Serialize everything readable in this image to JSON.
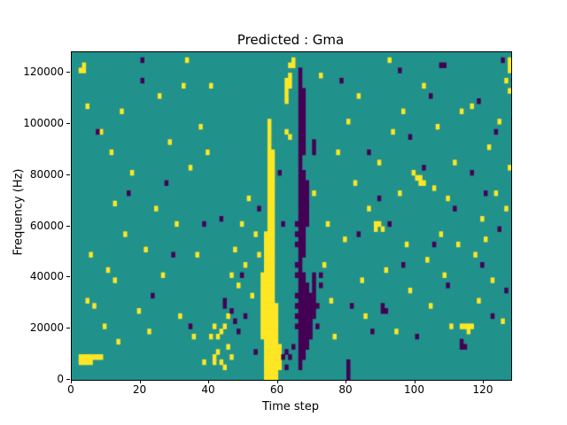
{
  "chart_data": {
    "type": "heatmap",
    "title": "Predicted : Gma",
    "xlabel": "Time step",
    "ylabel": "Frequency (Hz)",
    "x_range": [
      0,
      128
    ],
    "y_range": [
      0,
      128000
    ],
    "x_ticks": [
      0,
      20,
      40,
      60,
      80,
      100,
      120
    ],
    "y_ticks": [
      0,
      20000,
      40000,
      60000,
      80000,
      100000,
      120000
    ],
    "grid": {
      "cols": 128,
      "rows": 64,
      "cell_hz": 2000
    },
    "colors": {
      "background": "#21918c",
      "yellow": "#fde725",
      "purple": "#440154"
    },
    "legend": "none",
    "yellow_cells": [
      [
        2,
        3,
        4
      ],
      [
        3,
        3,
        4
      ],
      [
        4,
        3,
        4
      ],
      [
        5,
        3,
        4
      ],
      [
        6,
        4
      ],
      [
        7,
        4
      ],
      [
        8,
        4
      ],
      [
        2,
        60
      ],
      [
        3,
        60,
        61
      ],
      [
        4,
        53
      ],
      [
        8,
        48
      ],
      [
        5,
        24
      ],
      [
        4,
        15
      ],
      [
        6,
        14
      ],
      [
        10,
        21
      ],
      [
        12,
        19
      ],
      [
        9,
        10
      ],
      [
        13,
        7
      ],
      [
        12,
        34
      ],
      [
        15,
        28
      ],
      [
        11,
        44
      ],
      [
        17,
        40
      ],
      [
        14,
        52
      ],
      [
        19,
        13
      ],
      [
        22,
        9
      ],
      [
        21,
        25
      ],
      [
        24,
        33
      ],
      [
        26,
        20
      ],
      [
        28,
        46
      ],
      [
        25,
        55
      ],
      [
        30,
        30
      ],
      [
        31,
        12
      ],
      [
        33,
        62
      ],
      [
        32,
        57
      ],
      [
        34,
        41
      ],
      [
        36,
        24
      ],
      [
        35,
        8
      ],
      [
        37,
        49
      ],
      [
        38,
        3
      ],
      [
        39,
        44
      ],
      [
        40,
        57
      ],
      [
        41,
        3,
        4
      ],
      [
        42,
        5
      ],
      [
        42,
        8
      ],
      [
        43,
        3
      ],
      [
        43,
        9
      ],
      [
        44,
        2
      ],
      [
        44,
        10
      ],
      [
        45,
        6
      ],
      [
        45,
        12
      ],
      [
        46,
        4
      ],
      [
        41,
        10
      ],
      [
        40,
        8
      ],
      [
        48,
        18
      ],
      [
        47,
        25
      ],
      [
        49,
        30
      ],
      [
        50,
        22
      ],
      [
        52,
        16
      ],
      [
        51,
        35
      ],
      [
        53,
        28
      ],
      [
        46,
        20
      ],
      [
        54,
        24
      ],
      [
        55,
        8,
        20
      ],
      [
        56,
        0,
        28
      ],
      [
        57,
        0,
        50
      ],
      [
        58,
        0,
        44
      ],
      [
        59,
        0,
        14
      ],
      [
        60,
        2,
        6
      ],
      [
        62,
        48
      ],
      [
        62,
        54,
        58
      ],
      [
        63,
        57,
        59
      ],
      [
        63,
        47
      ],
      [
        63,
        61
      ],
      [
        64,
        61
      ],
      [
        64,
        62
      ],
      [
        70,
        36
      ],
      [
        72,
        59
      ],
      [
        73,
        22
      ],
      [
        75,
        15
      ],
      [
        74,
        30
      ],
      [
        77,
        44
      ],
      [
        76,
        8
      ],
      [
        79,
        27
      ],
      [
        80,
        50
      ],
      [
        82,
        38
      ],
      [
        84,
        19
      ],
      [
        83,
        55
      ],
      [
        86,
        33
      ],
      [
        85,
        12
      ],
      [
        88,
        29,
        30
      ],
      [
        89,
        30
      ],
      [
        90,
        29
      ],
      [
        89,
        42
      ],
      [
        91,
        21
      ],
      [
        92,
        62
      ],
      [
        93,
        48
      ],
      [
        95,
        36
      ],
      [
        94,
        9
      ],
      [
        97,
        26
      ],
      [
        96,
        52
      ],
      [
        99,
        40
      ],
      [
        98,
        17
      ],
      [
        100,
        39
      ],
      [
        101,
        38,
        39
      ],
      [
        102,
        38
      ],
      [
        103,
        23
      ],
      [
        102,
        57
      ],
      [
        105,
        37
      ],
      [
        104,
        14
      ],
      [
        107,
        28
      ],
      [
        106,
        49
      ],
      [
        109,
        35
      ],
      [
        108,
        20
      ],
      [
        111,
        42
      ],
      [
        110,
        10
      ],
      [
        113,
        52
      ],
      [
        112,
        26
      ],
      [
        113,
        10
      ],
      [
        114,
        10
      ],
      [
        115,
        10
      ],
      [
        116,
        10
      ],
      [
        115,
        9
      ],
      [
        117,
        24
      ],
      [
        116,
        53
      ],
      [
        119,
        31
      ],
      [
        118,
        15
      ],
      [
        121,
        45
      ],
      [
        120,
        27
      ],
      [
        123,
        36
      ],
      [
        122,
        19
      ],
      [
        124,
        50
      ],
      [
        125,
        11
      ],
      [
        126,
        58
      ],
      [
        127,
        56
      ],
      [
        127,
        60,
        62
      ],
      [
        126,
        33
      ],
      [
        127,
        41
      ]
    ],
    "purple_cells": [
      [
        66,
        2,
        60
      ],
      [
        67,
        4,
        20
      ],
      [
        67,
        24,
        40
      ],
      [
        67,
        44,
        56
      ],
      [
        65,
        10
      ],
      [
        65,
        12
      ],
      [
        65,
        14
      ],
      [
        65,
        16
      ],
      [
        65,
        20
      ],
      [
        65,
        22
      ],
      [
        65,
        26
      ],
      [
        65,
        28
      ],
      [
        65,
        30
      ],
      [
        68,
        6,
        18
      ],
      [
        68,
        30,
        38
      ],
      [
        69,
        8,
        16
      ],
      [
        70,
        12,
        20
      ],
      [
        70,
        44,
        46
      ],
      [
        71,
        10
      ],
      [
        71,
        14
      ],
      [
        72,
        18
      ],
      [
        72,
        20
      ],
      [
        61,
        4
      ],
      [
        62,
        5
      ],
      [
        63,
        4
      ],
      [
        64,
        6
      ],
      [
        62,
        2
      ],
      [
        61,
        30
      ],
      [
        7,
        48
      ],
      [
        16,
        36
      ],
      [
        20,
        58
      ],
      [
        20,
        62
      ],
      [
        23,
        16
      ],
      [
        27,
        38
      ],
      [
        29,
        24
      ],
      [
        34,
        10
      ],
      [
        38,
        30
      ],
      [
        43,
        31
      ],
      [
        44,
        14,
        15
      ],
      [
        46,
        13
      ],
      [
        47,
        11
      ],
      [
        48,
        9
      ],
      [
        49,
        20
      ],
      [
        50,
        12
      ],
      [
        53,
        5
      ],
      [
        54,
        33
      ],
      [
        60,
        40
      ],
      [
        78,
        58
      ],
      [
        80,
        0,
        3
      ],
      [
        81,
        14
      ],
      [
        83,
        28
      ],
      [
        86,
        44
      ],
      [
        87,
        9
      ],
      [
        89,
        35
      ],
      [
        90,
        13,
        14
      ],
      [
        91,
        13
      ],
      [
        92,
        30
      ],
      [
        95,
        60
      ],
      [
        96,
        22
      ],
      [
        98,
        47
      ],
      [
        100,
        8
      ],
      [
        102,
        41
      ],
      [
        104,
        55
      ],
      [
        105,
        26
      ],
      [
        107,
        61
      ],
      [
        108,
        61
      ],
      [
        109,
        18
      ],
      [
        111,
        33
      ],
      [
        113,
        6,
        7
      ],
      [
        114,
        6
      ],
      [
        116,
        40
      ],
      [
        118,
        54
      ],
      [
        119,
        22
      ],
      [
        120,
        36
      ],
      [
        122,
        12
      ],
      [
        123,
        48
      ],
      [
        124,
        29
      ],
      [
        125,
        62
      ],
      [
        126,
        17
      ]
    ]
  }
}
